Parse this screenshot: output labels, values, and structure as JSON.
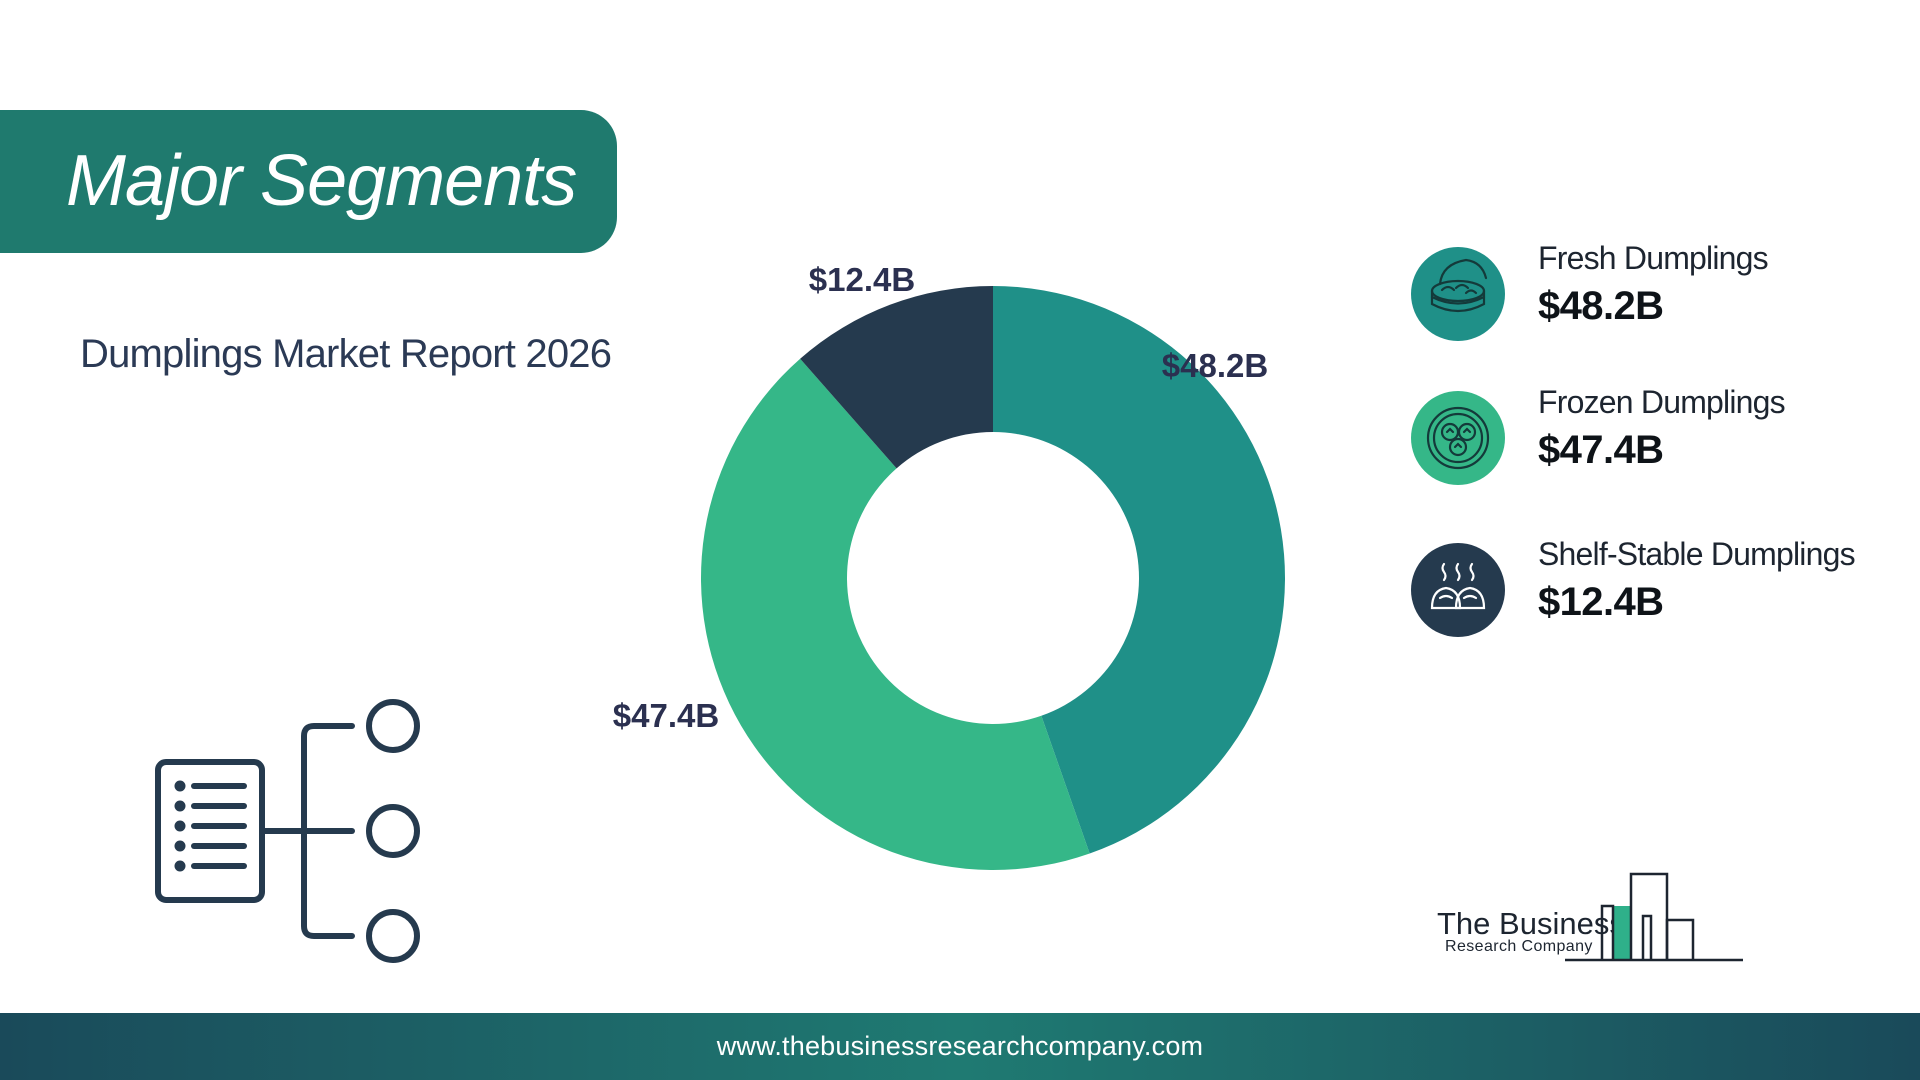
{
  "header": {
    "title": "Major Segments"
  },
  "report": {
    "title": "Dumplings Market Report 2026"
  },
  "chart_data": {
    "type": "pie",
    "variant": "donut",
    "categories": [
      "Fresh Dumplings",
      "Frozen Dumplings",
      "Shelf-Stable Dumplings"
    ],
    "values": [
      48.2,
      47.4,
      12.4
    ],
    "data_labels": [
      "$48.2B",
      "$47.4B",
      "$12.4B"
    ],
    "unit": "$B",
    "colors": [
      "#1f9088",
      "#35b788",
      "#253a4e"
    ],
    "legend_placement": "right"
  },
  "legend": {
    "items": [
      {
        "name": "Fresh Dumplings",
        "value": "$48.2B",
        "icon": "steamer-basket-icon",
        "color": "#1f9088"
      },
      {
        "name": "Frozen Dumplings",
        "value": "$47.4B",
        "icon": "dumpling-bowl-icon",
        "color": "#35b788"
      },
      {
        "name": "Shelf-Stable Dumplings",
        "value": "$12.4B",
        "icon": "steaming-dumplings-icon",
        "color": "#253a4e"
      }
    ]
  },
  "logo": {
    "name": "The Business",
    "sub": "Research Company"
  },
  "footer": {
    "url": "www.thebusinessresearchcompany.com"
  }
}
